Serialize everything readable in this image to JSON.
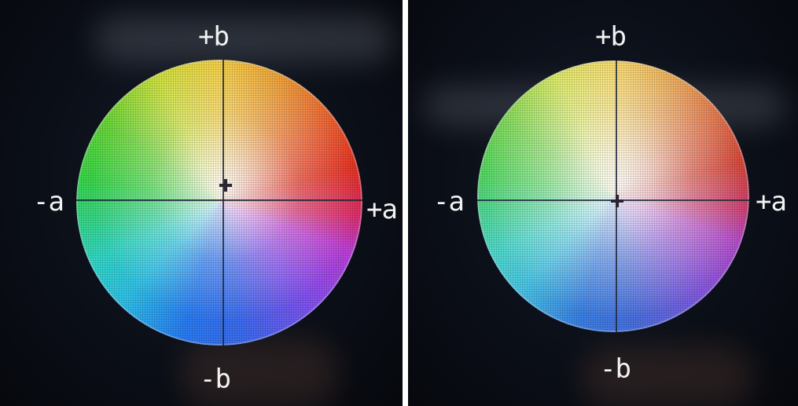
{
  "panels": [
    {
      "labels": {
        "top": "+b",
        "bottom": "-b",
        "left": "-a",
        "right": "+a"
      }
    },
    {
      "labels": {
        "top": "+b",
        "bottom": "-b",
        "left": "-a",
        "right": "+a"
      }
    }
  ],
  "colors": {
    "background": "#0b0f18",
    "label_text": "#f2f2f2",
    "axis_line": "#1e283c"
  }
}
